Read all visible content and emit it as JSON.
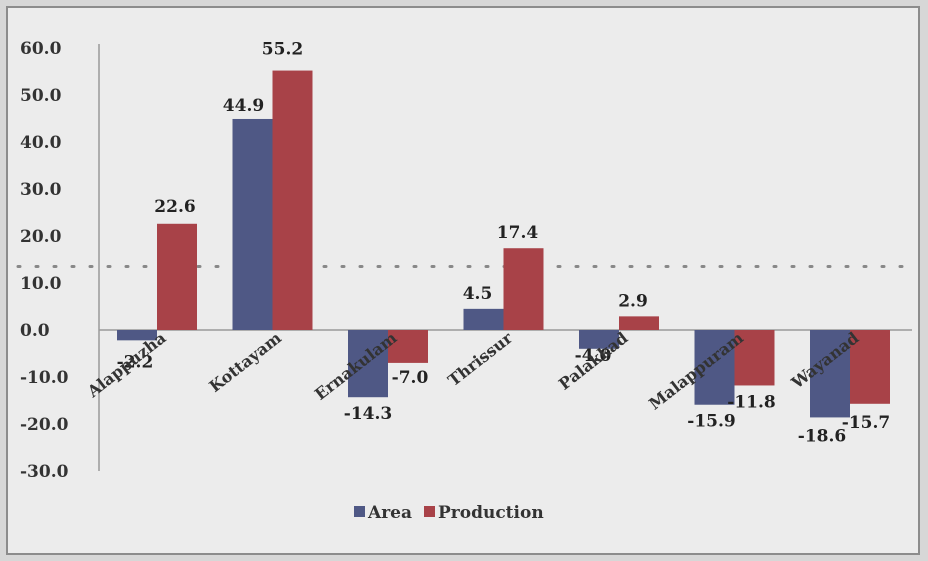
{
  "chart_data": {
    "type": "bar",
    "categories": [
      "Alappuzha",
      "Kottayam",
      "Ernakulam",
      "Thrissur",
      "Palakkad",
      "Malappuram",
      "Wayanad"
    ],
    "series": [
      {
        "name": "Area",
        "values": [
          -2.2,
          44.9,
          -14.3,
          4.5,
          -4.0,
          -15.9,
          -18.6
        ],
        "color": "#4f5885"
      },
      {
        "name": "Production",
        "values": [
          22.6,
          55.2,
          -7.0,
          17.4,
          2.9,
          -11.8,
          -15.7
        ],
        "color": "#a84248"
      }
    ],
    "data_labels": {
      "Area": [
        "-2.2",
        "44.9",
        "-14.3",
        "4.5",
        "-4.0",
        "-15.9",
        "-18.6"
      ],
      "Production": [
        "22.6",
        "55.2",
        "-7.0",
        "17.4",
        "2.9",
        "-11.8",
        "-15.7"
      ]
    },
    "y_ticks": [
      "-30.0",
      "-20.0",
      "-10.0",
      "0.0",
      "10.0",
      "20.0",
      "30.0",
      "40.0",
      "50.0",
      "60.0"
    ],
    "ylim": [
      -30,
      60
    ],
    "grid": false,
    "legend": "bottom-center",
    "reference_line": {
      "style": "dotted",
      "approx_value": 13.5
    },
    "title": "",
    "xlabel": "",
    "ylabel": ""
  }
}
